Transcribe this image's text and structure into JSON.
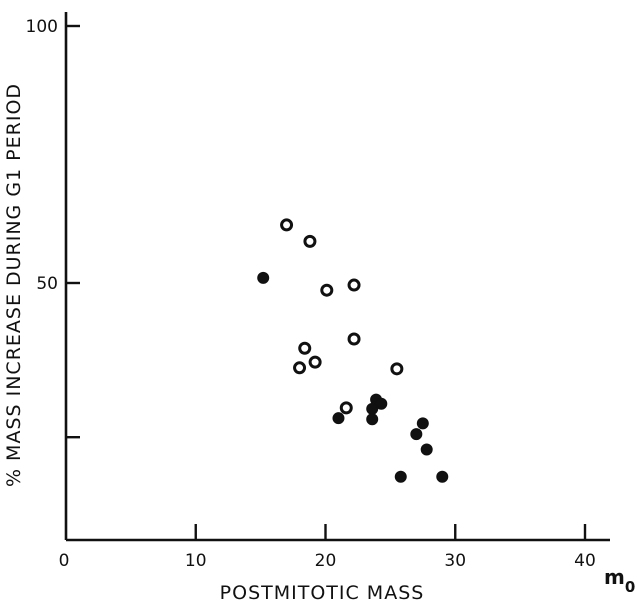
{
  "chart_data": {
    "type": "scatter",
    "xlabel": "POSTMITOTIC MASS",
    "ylabel": "% MASS INCREASE DURING G1 PERIOD",
    "unit_label": "m",
    "unit_subscript": "0",
    "xlim": [
      0,
      42
    ],
    "ylim": [
      0,
      102
    ],
    "xticks": [
      0,
      10,
      20,
      30,
      40
    ],
    "xtick_labels": [
      "0",
      "10",
      "20",
      "30",
      "40"
    ],
    "yticks": [
      50,
      100
    ],
    "ytick_labels": [
      "50",
      "100"
    ],
    "grid": false,
    "series": [
      {
        "marker": "open-circle",
        "points": [
          {
            "x": 17.0,
            "y": 61.3
          },
          {
            "x": 18.8,
            "y": 58.1
          },
          {
            "x": 20.1,
            "y": 48.6
          },
          {
            "x": 22.2,
            "y": 49.6
          },
          {
            "x": 22.2,
            "y": 39.1
          },
          {
            "x": 18.4,
            "y": 37.3
          },
          {
            "x": 19.2,
            "y": 34.6
          },
          {
            "x": 18.0,
            "y": 33.5
          },
          {
            "x": 25.5,
            "y": 33.3
          },
          {
            "x": 21.6,
            "y": 25.7
          }
        ]
      },
      {
        "marker": "filled-circle",
        "points": [
          {
            "x": 15.2,
            "y": 51.0
          },
          {
            "x": 23.9,
            "y": 27.3
          },
          {
            "x": 24.3,
            "y": 26.5
          },
          {
            "x": 23.6,
            "y": 25.5
          },
          {
            "x": 21.0,
            "y": 23.7
          },
          {
            "x": 23.6,
            "y": 23.5
          },
          {
            "x": 27.5,
            "y": 22.7
          },
          {
            "x": 27.0,
            "y": 20.6
          },
          {
            "x": 27.8,
            "y": 17.6
          },
          {
            "x": 25.8,
            "y": 12.3
          },
          {
            "x": 29.0,
            "y": 12.3
          }
        ]
      }
    ]
  }
}
